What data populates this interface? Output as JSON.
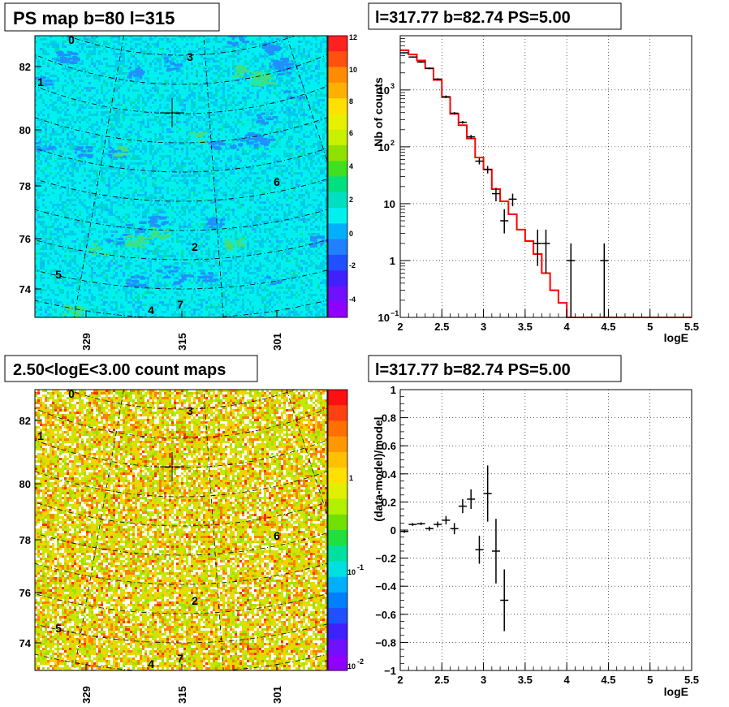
{
  "colors": {
    "histogram": "#ff0000",
    "data_points": "#000000",
    "sky_background": "#00f0f0",
    "frame": "#000000"
  },
  "panels": {
    "top_left": {
      "title": "PS map b=80 l=315",
      "yticks": [
        "74",
        "76",
        "78",
        "80",
        "82"
      ],
      "xticks": [
        "329",
        "315",
        "301"
      ],
      "colorbar_ticks": [
        "12",
        "10",
        "8",
        "6",
        "4",
        "2",
        "0",
        "-2",
        "-4"
      ],
      "regions": [
        "0",
        "1",
        "3",
        "6",
        "2",
        "5",
        "4",
        "7"
      ]
    },
    "bottom_left": {
      "title": "2.50<logE<3.00 count maps",
      "yticks": [
        "74",
        "76",
        "78",
        "80",
        "82"
      ],
      "xticks": [
        "329",
        "315",
        "301"
      ],
      "colorbar_ticks": [
        "1",
        "10",
        "10",
        "-1",
        "-2"
      ],
      "regions": [
        "0",
        "1",
        "3",
        "6",
        "2",
        "5",
        "4",
        "7"
      ]
    }
  },
  "chart_data": [
    {
      "type": "line",
      "title": "l=317.77 b=82.74 PS=5.00",
      "xlabel": "logE",
      "ylabel": "Nb of counts",
      "xlim": [
        2,
        5.5
      ],
      "ylim": [
        0.1,
        9000
      ],
      "yscale": "log",
      "grid": true,
      "xticks": [
        "2",
        "2.5",
        "3",
        "3.5",
        "4",
        "4.5",
        "5",
        "5.5"
      ],
      "yticks": [
        {
          "v": 0.1,
          "label": "10",
          "exp": "−1"
        },
        {
          "v": 1,
          "label": "1",
          "exp": ""
        },
        {
          "v": 10,
          "label": "10",
          "exp": ""
        },
        {
          "v": 100,
          "label": "10",
          "exp": "2"
        },
        {
          "v": 1000,
          "label": "10",
          "exp": "3"
        }
      ],
      "model_hist": {
        "name": "model",
        "edges": [
          2.0,
          2.1,
          2.2,
          2.3,
          2.4,
          2.5,
          2.6,
          2.7,
          2.8,
          2.9,
          3.0,
          3.1,
          3.2,
          3.3,
          3.4,
          3.5,
          3.6,
          3.7,
          3.8,
          3.9,
          4.0,
          5.5
        ],
        "values": [
          5000,
          4200,
          3300,
          2400,
          1500,
          750,
          380,
          240,
          140,
          65,
          40,
          18,
          11,
          6.5,
          3.5,
          2.2,
          1.3,
          0.6,
          0.3,
          0.18,
          0.1
        ]
      },
      "points": [
        {
          "x": 2.05,
          "y": 4500,
          "ylo": 4400,
          "yhi": 4600
        },
        {
          "x": 2.15,
          "y": 3800,
          "ylo": 3700,
          "yhi": 3900
        },
        {
          "x": 2.25,
          "y": 3100,
          "ylo": 3000,
          "yhi": 3200
        },
        {
          "x": 2.35,
          "y": 2400,
          "ylo": 2320,
          "yhi": 2480
        },
        {
          "x": 2.45,
          "y": 1550,
          "ylo": 1490,
          "yhi": 1610
        },
        {
          "x": 2.55,
          "y": 760,
          "ylo": 720,
          "yhi": 800
        },
        {
          "x": 2.65,
          "y": 390,
          "ylo": 370,
          "yhi": 410
        },
        {
          "x": 2.75,
          "y": 270,
          "ylo": 255,
          "yhi": 285
        },
        {
          "x": 2.85,
          "y": 150,
          "ylo": 138,
          "yhi": 162
        },
        {
          "x": 2.95,
          "y": 56,
          "ylo": 49,
          "yhi": 63
        },
        {
          "x": 3.05,
          "y": 40,
          "ylo": 34,
          "yhi": 46
        },
        {
          "x": 3.15,
          "y": 15,
          "ylo": 11,
          "yhi": 19
        },
        {
          "x": 3.25,
          "y": 5,
          "ylo": 3,
          "yhi": 8
        },
        {
          "x": 3.35,
          "y": 12,
          "ylo": 9,
          "yhi": 15
        },
        {
          "x": 3.65,
          "y": 2,
          "ylo": 0.8,
          "yhi": 3.5
        },
        {
          "x": 3.75,
          "y": 2,
          "ylo": 0.6,
          "yhi": 3.5
        },
        {
          "x": 4.05,
          "y": 1,
          "ylo": 0.1,
          "yhi": 2
        },
        {
          "x": 4.45,
          "y": 1,
          "ylo": 0.1,
          "yhi": 2
        }
      ]
    },
    {
      "type": "scatter",
      "title": "l=317.77 b=82.74 PS=5.00",
      "xlabel": "logE",
      "ylabel": "(data-model)/model",
      "xlim": [
        2,
        5.5
      ],
      "ylim": [
        -1,
        1
      ],
      "grid": true,
      "xticks": [
        "2",
        "2.5",
        "3",
        "3.5",
        "4",
        "4.5",
        "5",
        "5.5"
      ],
      "yticks": [
        "−1",
        "−0.8",
        "−0.6",
        "−0.4",
        "−0.2",
        "0",
        "0.2",
        "0.4",
        "0.6",
        "0.8",
        "1"
      ],
      "points": [
        {
          "x": 2.05,
          "y": -0.01,
          "err": 0.01
        },
        {
          "x": 2.15,
          "y": 0.04,
          "err": 0.01
        },
        {
          "x": 2.25,
          "y": 0.045,
          "err": 0.01
        },
        {
          "x": 2.35,
          "y": 0.01,
          "err": 0.015
        },
        {
          "x": 2.45,
          "y": 0.04,
          "err": 0.02
        },
        {
          "x": 2.55,
          "y": 0.07,
          "err": 0.03
        },
        {
          "x": 2.65,
          "y": 0.01,
          "err": 0.04
        },
        {
          "x": 2.75,
          "y": 0.17,
          "err": 0.05
        },
        {
          "x": 2.85,
          "y": 0.22,
          "err": 0.07
        },
        {
          "x": 2.95,
          "y": -0.14,
          "err": 0.1
        },
        {
          "x": 3.05,
          "y": 0.26,
          "err": 0.2
        },
        {
          "x": 3.15,
          "y": -0.15,
          "err": 0.23
        },
        {
          "x": 3.25,
          "y": -0.5,
          "err": 0.22
        }
      ]
    }
  ]
}
